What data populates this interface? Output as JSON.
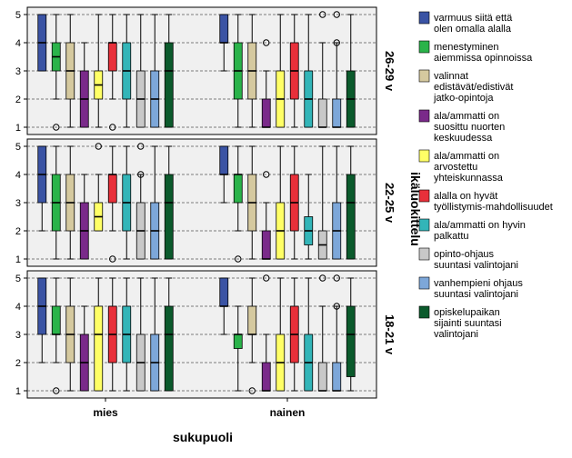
{
  "chart_data": {
    "type": "boxplot",
    "xlabel": "sukupuoli",
    "facet_label": "ikäluokittelu",
    "categories": [
      "mies",
      "nainen"
    ],
    "ylim": [
      1,
      5
    ],
    "yticks": [
      1,
      2,
      3,
      4,
      5
    ],
    "grid": true,
    "legend_position": "right",
    "series": [
      {
        "name": "varmuus siitä että olen omalla alalla",
        "color": "#3a53a4"
      },
      {
        "name": "menestyminen aiemmissa opinnoissa",
        "color": "#2ab34a"
      },
      {
        "name": "valinnat edistävät/edistivät jatko-opintoja",
        "color": "#d5c99f"
      },
      {
        "name": "ala/ammatti on suosittu nuorten keskuudessa",
        "color": "#7a2a8a"
      },
      {
        "name": "ala/ammatti on arvostettu yhteiskunnassa",
        "color": "#ffff66"
      },
      {
        "name": "alalla on hyvät työllistymis-mahdollisuudet",
        "color": "#e8303a"
      },
      {
        "name": "ala/ammatti on hyvin palkattu",
        "color": "#33b5b8"
      },
      {
        "name": "opinto-ohjaus suuntasi valintojani",
        "color": "#c8c8c8"
      },
      {
        "name": "vanhempieni ohjaus suuntasi valintojani",
        "color": "#7da7d9"
      },
      {
        "name": "opiskelupaikan sijainti suuntasi valintojani",
        "color": "#0b5a2c"
      }
    ],
    "panels": [
      {
        "label": "26-29 v",
        "groups": {
          "mies": [
            {
              "min": 3,
              "q1": 3,
              "median": 4,
              "q3": 5,
              "max": 5,
              "outliers": []
            },
            {
              "min": 2,
              "q1": 3,
              "median": 3.5,
              "q3": 4,
              "max": 5,
              "outliers": [
                1
              ]
            },
            {
              "min": 1,
              "q1": 2,
              "median": 3,
              "q3": 4,
              "max": 5,
              "outliers": []
            },
            {
              "min": 1,
              "q1": 1,
              "median": 2,
              "q3": 3,
              "max": 4,
              "outliers": []
            },
            {
              "min": 1,
              "q1": 2,
              "median": 2.5,
              "q3": 3,
              "max": 5,
              "outliers": []
            },
            {
              "min": 2,
              "q1": 3,
              "median": 4,
              "q3": 4,
              "max": 5,
              "outliers": [
                1
              ]
            },
            {
              "min": 1,
              "q1": 2,
              "median": 3,
              "q3": 4,
              "max": 5,
              "outliers": []
            },
            {
              "min": 1,
              "q1": 1,
              "median": 2,
              "q3": 3,
              "max": 5,
              "outliers": []
            },
            {
              "min": 1,
              "q1": 1,
              "median": 2,
              "q3": 3,
              "max": 5,
              "outliers": []
            },
            {
              "min": 1,
              "q1": 1,
              "median": 3,
              "q3": 4,
              "max": 5,
              "outliers": []
            }
          ],
          "nainen": [
            {
              "min": 3,
              "q1": 4,
              "median": 4,
              "q3": 5,
              "max": 5,
              "outliers": []
            },
            {
              "min": 1,
              "q1": 2,
              "median": 3,
              "q3": 4,
              "max": 5,
              "outliers": []
            },
            {
              "min": 1,
              "q1": 2,
              "median": 3,
              "q3": 4,
              "max": 5,
              "outliers": []
            },
            {
              "min": 1,
              "q1": 1,
              "median": 1,
              "q3": 2,
              "max": 3,
              "outliers": [
                4
              ]
            },
            {
              "min": 1,
              "q1": 1,
              "median": 2,
              "q3": 3,
              "max": 5,
              "outliers": []
            },
            {
              "min": 1,
              "q1": 2,
              "median": 3,
              "q3": 4,
              "max": 5,
              "outliers": []
            },
            {
              "min": 1,
              "q1": 1,
              "median": 2,
              "q3": 3,
              "max": 5,
              "outliers": []
            },
            {
              "min": 1,
              "q1": 1,
              "median": 1,
              "q3": 2,
              "max": 4,
              "outliers": [
                5
              ]
            },
            {
              "min": 1,
              "q1": 1,
              "median": 1,
              "q3": 2,
              "max": 4,
              "outliers": [
                5,
                4
              ]
            },
            {
              "min": 1,
              "q1": 1,
              "median": 2,
              "q3": 3,
              "max": 5,
              "outliers": []
            }
          ]
        }
      },
      {
        "label": "22-25 v",
        "groups": {
          "mies": [
            {
              "min": 2,
              "q1": 3,
              "median": 4,
              "q3": 5,
              "max": 5,
              "outliers": []
            },
            {
              "min": 1,
              "q1": 2,
              "median": 3,
              "q3": 4,
              "max": 5,
              "outliers": []
            },
            {
              "min": 1,
              "q1": 2,
              "median": 3,
              "q3": 4,
              "max": 5,
              "outliers": []
            },
            {
              "min": 1,
              "q1": 1,
              "median": 2,
              "q3": 3,
              "max": 4,
              "outliers": []
            },
            {
              "min": 2,
              "q1": 2,
              "median": 2.5,
              "q3": 3,
              "max": 4,
              "outliers": [
                5
              ]
            },
            {
              "min": 2,
              "q1": 3,
              "median": 4,
              "q3": 4,
              "max": 5,
              "outliers": [
                1
              ]
            },
            {
              "min": 1,
              "q1": 2,
              "median": 3,
              "q3": 4,
              "max": 5,
              "outliers": []
            },
            {
              "min": 1,
              "q1": 1,
              "median": 2,
              "q3": 3,
              "max": 4,
              "outliers": [
                5,
                4
              ]
            },
            {
              "min": 1,
              "q1": 1,
              "median": 2,
              "q3": 3,
              "max": 5,
              "outliers": []
            },
            {
              "min": 1,
              "q1": 1,
              "median": 3,
              "q3": 4,
              "max": 5,
              "outliers": []
            }
          ],
          "nainen": [
            {
              "min": 3,
              "q1": 4,
              "median": 4,
              "q3": 5,
              "max": 5,
              "outliers": []
            },
            {
              "min": 2,
              "q1": 3,
              "median": 4,
              "q3": 4,
              "max": 5,
              "outliers": [
                1
              ]
            },
            {
              "min": 1,
              "q1": 2,
              "median": 3,
              "q3": 4,
              "max": 5,
              "outliers": []
            },
            {
              "min": 1,
              "q1": 1,
              "median": 1,
              "q3": 2,
              "max": 3,
              "outliers": [
                4
              ]
            },
            {
              "min": 1,
              "q1": 1,
              "median": 2,
              "q3": 3,
              "max": 5,
              "outliers": []
            },
            {
              "min": 1,
              "q1": 2,
              "median": 3,
              "q3": 4,
              "max": 5,
              "outliers": []
            },
            {
              "min": 1,
              "q1": 1.5,
              "median": 2,
              "q3": 2.5,
              "max": 4,
              "outliers": []
            },
            {
              "min": 1,
              "q1": 1,
              "median": 1.5,
              "q3": 2,
              "max": 5,
              "outliers": []
            },
            {
              "min": 1,
              "q1": 1,
              "median": 2,
              "q3": 3,
              "max": 5,
              "outliers": []
            },
            {
              "min": 1,
              "q1": 1,
              "median": 3,
              "q3": 4,
              "max": 5,
              "outliers": []
            }
          ]
        }
      },
      {
        "label": "18-21 v",
        "groups": {
          "mies": [
            {
              "min": 2,
              "q1": 3,
              "median": 4,
              "q3": 5,
              "max": 5,
              "outliers": []
            },
            {
              "min": 2,
              "q1": 3,
              "median": 3,
              "q3": 4,
              "max": 5,
              "outliers": [
                1
              ]
            },
            {
              "min": 1,
              "q1": 2,
              "median": 3,
              "q3": 4,
              "max": 5,
              "outliers": []
            },
            {
              "min": 1,
              "q1": 1,
              "median": 2,
              "q3": 3,
              "max": 4,
              "outliers": []
            },
            {
              "min": 1,
              "q1": 1,
              "median": 3,
              "q3": 4,
              "max": 5,
              "outliers": []
            },
            {
              "min": 1,
              "q1": 2,
              "median": 3,
              "q3": 4,
              "max": 5,
              "outliers": []
            },
            {
              "min": 1,
              "q1": 2,
              "median": 3,
              "q3": 4,
              "max": 5,
              "outliers": []
            },
            {
              "min": 1,
              "q1": 1,
              "median": 2,
              "q3": 3,
              "max": 5,
              "outliers": []
            },
            {
              "min": 1,
              "q1": 1,
              "median": 2,
              "q3": 3,
              "max": 5,
              "outliers": []
            },
            {
              "min": 1,
              "q1": 1,
              "median": 3,
              "q3": 4,
              "max": 5,
              "outliers": []
            }
          ],
          "nainen": [
            {
              "min": 3,
              "q1": 4,
              "median": 4,
              "q3": 5,
              "max": 5,
              "outliers": []
            },
            {
              "min": 1,
              "q1": 2.5,
              "median": 3,
              "q3": 3,
              "max": 4,
              "outliers": []
            },
            {
              "min": 2,
              "q1": 3,
              "median": 3,
              "q3": 4,
              "max": 5,
              "outliers": [
                1
              ]
            },
            {
              "min": 1,
              "q1": 1,
              "median": 1,
              "q3": 2,
              "max": 3,
              "outliers": [
                5
              ]
            },
            {
              "min": 1,
              "q1": 1,
              "median": 2,
              "q3": 3,
              "max": 5,
              "outliers": []
            },
            {
              "min": 1,
              "q1": 2,
              "median": 3,
              "q3": 4,
              "max": 5,
              "outliers": []
            },
            {
              "min": 1,
              "q1": 1,
              "median": 2,
              "q3": 3,
              "max": 5,
              "outliers": []
            },
            {
              "min": 1,
              "q1": 1,
              "median": 1,
              "q3": 2,
              "max": 4,
              "outliers": [
                5
              ]
            },
            {
              "min": 1,
              "q1": 1,
              "median": 1,
              "q3": 2,
              "max": 4,
              "outliers": [
                5,
                4
              ]
            },
            {
              "min": 1,
              "q1": 1.5,
              "median": 3,
              "q3": 4,
              "max": 5,
              "outliers": []
            }
          ]
        }
      }
    ]
  }
}
